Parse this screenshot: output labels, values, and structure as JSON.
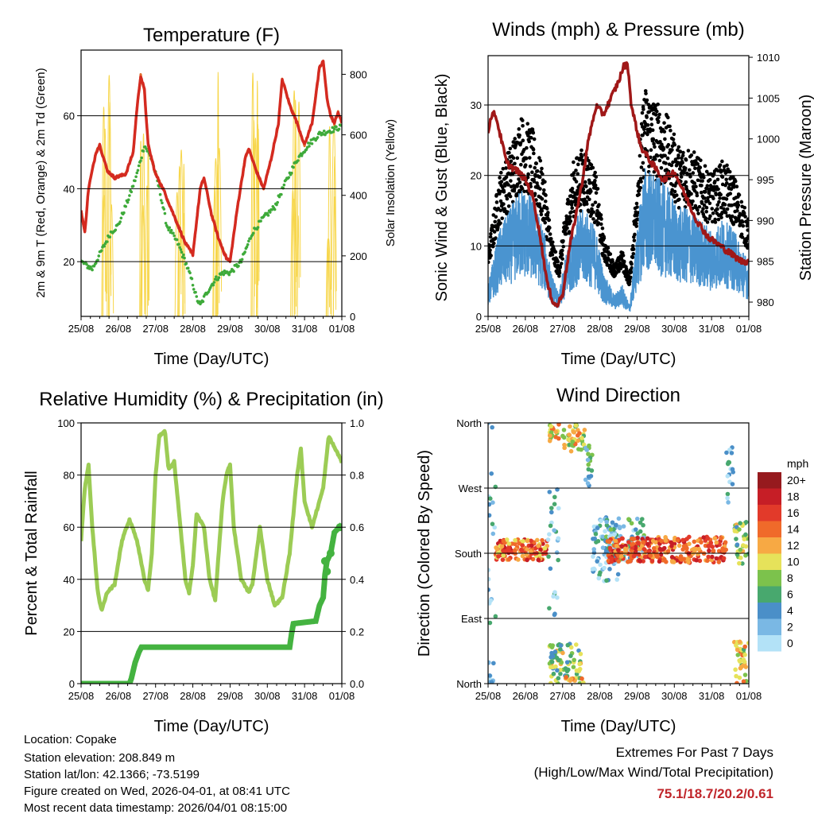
{
  "footer": {
    "location": "Location: Copake",
    "elevation": "Station elevation: 208.849 m",
    "latlon": "Station lat/lon: 42.1366; -73.5199",
    "created": "Figure created on Wed, 2026-04-01, at 08:41 UTC",
    "recent": "Most recent data timestamp: 2026/04/01 08:15:00"
  },
  "extremes": {
    "title": "Extremes For Past 7 Days",
    "subtitle": "(High/Low/Max Wind/Total Precipitation)",
    "values": "75.1/18.7/20.2/0.61",
    "color": "#c0252a"
  },
  "chart_data": [
    {
      "type": "line",
      "title": "Temperature (F)",
      "xlabel": "Time (Day/UTC)",
      "ylabel": "2m & 9m T (Red, Orange) & 2m Td (Green)",
      "y2label": "Solar Insolation (Yellow)",
      "xticks": [
        "25/08",
        "26/08",
        "27/08",
        "28/08",
        "29/08",
        "30/08",
        "31/08",
        "01/08"
      ],
      "xlim_days": [
        0,
        7
      ],
      "ylim": [
        5,
        78
      ],
      "yticks": [
        20,
        40,
        60
      ],
      "y2lim": [
        0,
        880
      ],
      "y2ticks": [
        0,
        200,
        400,
        600,
        800
      ],
      "series": [
        {
          "name": "2m T",
          "color": "#d42a20",
          "t": [
            0,
            0.1,
            0.2,
            0.4,
            0.5,
            0.7,
            0.9,
            1.2,
            1.4,
            1.5,
            1.6,
            1.7,
            1.8,
            2.0,
            2.2,
            2.4,
            2.6,
            2.8,
            3.0,
            3.2,
            3.3,
            3.5,
            3.7,
            3.9,
            4.0,
            4.2,
            4.4,
            4.5,
            4.7,
            4.9,
            5.1,
            5.3,
            5.4,
            5.6,
            5.8,
            6.0,
            6.2,
            6.4,
            6.5,
            6.6,
            6.7,
            6.8,
            6.9,
            7.0
          ],
          "v": [
            34,
            28,
            40,
            50,
            52,
            45,
            43,
            44,
            50,
            62,
            71,
            67,
            52,
            44,
            40,
            35,
            30,
            25,
            22,
            40,
            43,
            33,
            26,
            21,
            20,
            35,
            48,
            51,
            45,
            40,
            48,
            58,
            70,
            63,
            58,
            52,
            58,
            73,
            75,
            65,
            60,
            58,
            61,
            58
          ]
        },
        {
          "name": "2m Td",
          "color": "#3eaa3a",
          "t": [
            0,
            0.3,
            0.5,
            0.8,
            1.0,
            1.3,
            1.5,
            1.7,
            1.9,
            2.1,
            2.3,
            2.6,
            2.8,
            3.0,
            3.1,
            3.2,
            3.4,
            3.6,
            3.8,
            4.0,
            4.3,
            4.6,
            4.9,
            5.2,
            5.5,
            5.8,
            6.1,
            6.4,
            6.7,
            7.0
          ],
          "v": [
            20,
            18,
            22,
            28,
            30,
            38,
            44,
            52,
            48,
            40,
            30,
            25,
            20,
            14,
            10,
            8,
            12,
            15,
            17,
            17,
            20,
            28,
            32,
            35,
            42,
            48,
            52,
            55,
            56,
            57
          ]
        }
      ],
      "solar": {
        "name": "Solar Insolation",
        "color": "#f7d64a",
        "daily_peak": [
          800,
          660,
          560,
          840,
          830,
          820,
          720
        ]
      }
    },
    {
      "type": "scatter",
      "title": "Winds (mph) & Pressure (mb)",
      "xlabel": "Time (Day/UTC)",
      "ylabel": "Sonic Wind & Gust (Blue, Black)",
      "y2label": "Station Pressure (Maroon)",
      "xticks": [
        "25/08",
        "26/08",
        "27/08",
        "28/08",
        "29/08",
        "30/08",
        "31/08",
        "01/08"
      ],
      "ylim": [
        0,
        37
      ],
      "yticks": [
        0,
        10,
        20,
        30
      ],
      "y2lim": [
        978.25,
        1010.2
      ],
      "y2ticks": [
        980,
        985,
        990,
        995,
        1000,
        1005,
        1010
      ],
      "wind": {
        "color": "#4a94d0",
        "t": [
          0,
          0.3,
          0.6,
          0.9,
          1.2,
          1.5,
          1.7,
          1.9,
          2.1,
          2.3,
          2.6,
          2.9,
          3.1,
          3.4,
          3.6,
          3.8,
          4.0,
          4.2,
          4.5,
          4.8,
          5.1,
          5.4,
          5.7,
          6.0,
          6.3,
          6.6,
          7.0
        ],
        "v": [
          3,
          8,
          10,
          12,
          11,
          8,
          4,
          2,
          6,
          9,
          10,
          8,
          4,
          2,
          3,
          1,
          8,
          14,
          13,
          12,
          10,
          10,
          9,
          8,
          9,
          8,
          5
        ]
      },
      "gust": {
        "color": "#000000",
        "factor": 1.6,
        "offset": 3
      },
      "pressure": {
        "color": "#a01818",
        "t": [
          0,
          0.1,
          0.2,
          0.35,
          0.5,
          0.8,
          1.0,
          1.2,
          1.4,
          1.6,
          1.75,
          1.85,
          2.0,
          2.2,
          2.5,
          2.7,
          2.9,
          3.1,
          3.3,
          3.5,
          3.65,
          3.75,
          3.85,
          4.1,
          4.4,
          4.7,
          5.0,
          5.3,
          5.6,
          5.9,
          6.2,
          6.5,
          6.8,
          7.0
        ],
        "v": [
          1001,
          1003,
          1003,
          1000,
          997,
          996,
          995,
          993,
          988,
          982,
          980,
          979.5,
          981,
          987,
          994,
          1000,
          1004,
          1003,
          1005,
          1007,
          1009,
          1009,
          1004,
          999,
          997,
          995,
          996,
          993,
          990,
          988,
          987,
          986,
          985,
          985
        ]
      }
    },
    {
      "type": "line",
      "title": "Relative Humidity (%) & Precipitation (in)",
      "xlabel": "Time (Day/UTC)",
      "ylabel": "Percent & Total Rainfall",
      "xticks": [
        "25/08",
        "26/08",
        "27/08",
        "28/08",
        "29/08",
        "30/08",
        "31/08",
        "01/08"
      ],
      "ylim": [
        0,
        100
      ],
      "yticks": [
        0,
        20,
        40,
        60,
        80,
        100
      ],
      "y2lim": [
        0,
        1
      ],
      "y2ticks": [
        "0.0",
        "0.2",
        "0.4",
        "0.6",
        "0.8",
        "1.0"
      ],
      "series": [
        {
          "name": "Relative Humidity",
          "color": "#9ccc55",
          "t": [
            0,
            0.1,
            0.2,
            0.3,
            0.45,
            0.55,
            0.7,
            0.9,
            1.1,
            1.3,
            1.5,
            1.7,
            1.8,
            1.9,
            2.0,
            2.1,
            2.25,
            2.35,
            2.5,
            2.6,
            2.8,
            2.9,
            3.0,
            3.1,
            3.3,
            3.45,
            3.6,
            3.8,
            3.9,
            4.0,
            4.1,
            4.3,
            4.5,
            4.6,
            4.8,
            4.9,
            5.0,
            5.2,
            5.4,
            5.6,
            5.8,
            5.9,
            6.0,
            6.2,
            6.3,
            6.5,
            6.65,
            6.75,
            6.9,
            7.0
          ],
          "v": [
            55,
            75,
            84,
            60,
            35,
            28,
            35,
            38,
            55,
            63,
            55,
            40,
            36,
            50,
            80,
            95,
            97,
            82,
            85,
            70,
            40,
            35,
            45,
            65,
            60,
            40,
            32,
            70,
            80,
            84,
            60,
            40,
            35,
            38,
            60,
            50,
            40,
            30,
            33,
            50,
            80,
            90,
            70,
            60,
            65,
            75,
            95,
            92,
            88,
            85
          ]
        },
        {
          "name": "Total Precipitation",
          "color": "#44b340",
          "axis": "right",
          "t": [
            0,
            1.3,
            1.35,
            1.45,
            1.55,
            1.62,
            5.6,
            5.65,
            5.7,
            6.3,
            6.4,
            6.5,
            6.55,
            6.6,
            6.7,
            6.8,
            7.0
          ],
          "v": [
            0,
            0,
            0.02,
            0.08,
            0.12,
            0.14,
            0.14,
            0.19,
            0.23,
            0.24,
            0.3,
            0.33,
            0.42,
            0.47,
            0.5,
            0.58,
            0.61
          ]
        }
      ]
    },
    {
      "type": "scatter",
      "title": "Wind Direction",
      "xlabel": "Time (Day/UTC)",
      "ylabel": "Direction (Colored By Speed)",
      "xticks": [
        "25/08",
        "26/08",
        "27/08",
        "28/08",
        "29/08",
        "30/08",
        "31/08",
        "01/08"
      ],
      "ylim": [
        0,
        360
      ],
      "yticks": [
        {
          "v": 0,
          "label": "North"
        },
        {
          "v": 90,
          "label": "East"
        },
        {
          "v": 180,
          "label": "South"
        },
        {
          "v": 270,
          "label": "West"
        },
        {
          "v": 360,
          "label": "North"
        }
      ],
      "colorbar": {
        "title": "mph",
        "labels": [
          "0",
          "2",
          "4",
          "6",
          "8",
          "10",
          "12",
          "14",
          "16",
          "18",
          "20+"
        ],
        "colors": [
          "#b3e2f7",
          "#7ab8e4",
          "#4a8fc8",
          "#48a86e",
          "#7cc24c",
          "#e6e25a",
          "#f7a944",
          "#f06a2a",
          "#e23a2a",
          "#c61e26",
          "#961a1e"
        ]
      },
      "clusters": [
        [
          0,
          0.2,
          180,
          120,
          2
        ],
        [
          0,
          0.15,
          10,
          20,
          3
        ],
        [
          0.2,
          1.6,
          185,
          15,
          14
        ],
        [
          1.6,
          1.9,
          180,
          100,
          3
        ],
        [
          1.65,
          1.9,
          350,
          15,
          11
        ],
        [
          1.65,
          2.5,
          30,
          25,
          8
        ],
        [
          2.0,
          2.6,
          345,
          25,
          10
        ],
        [
          2.6,
          2.8,
          300,
          30,
          5
        ],
        [
          2.8,
          3.5,
          180,
          40,
          2
        ],
        [
          3.0,
          4.2,
          200,
          30,
          4
        ],
        [
          3.2,
          6.4,
          185,
          18,
          15
        ],
        [
          6.4,
          6.6,
          290,
          40,
          3
        ],
        [
          6.6,
          7.0,
          195,
          30,
          8
        ],
        [
          6.6,
          7.0,
          30,
          30,
          10
        ]
      ]
    }
  ]
}
